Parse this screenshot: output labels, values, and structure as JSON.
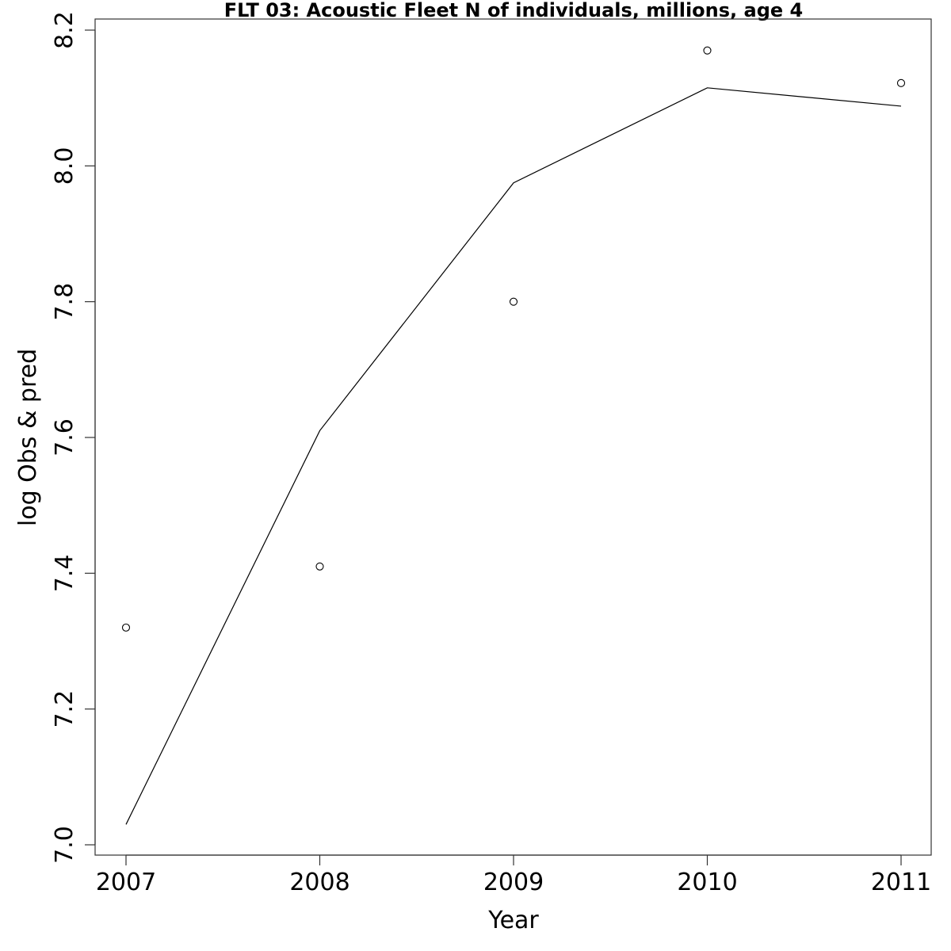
{
  "chart_data": {
    "type": "line",
    "title": "FLT 03: Acoustic Fleet  N of individuals, millions, age 4",
    "xlabel": "Year",
    "ylabel": "log Obs & pred",
    "x": [
      2007,
      2008,
      2009,
      2010,
      2011
    ],
    "xticks": [
      "2007",
      "2008",
      "2009",
      "2010",
      "2011"
    ],
    "yticks": [
      "7.0",
      "7.2",
      "7.4",
      "7.6",
      "7.8",
      "8.0",
      "8.2"
    ],
    "xlim": [
      2006.84,
      2011.16
    ],
    "ylim": [
      7.0,
      8.2
    ],
    "grid": false,
    "series": [
      {
        "style": "line",
        "values": [
          7.03,
          7.61,
          7.975,
          8.115,
          8.088
        ]
      },
      {
        "style": "points",
        "values": [
          7.32,
          7.41,
          7.8,
          8.17,
          8.122
        ]
      }
    ]
  }
}
